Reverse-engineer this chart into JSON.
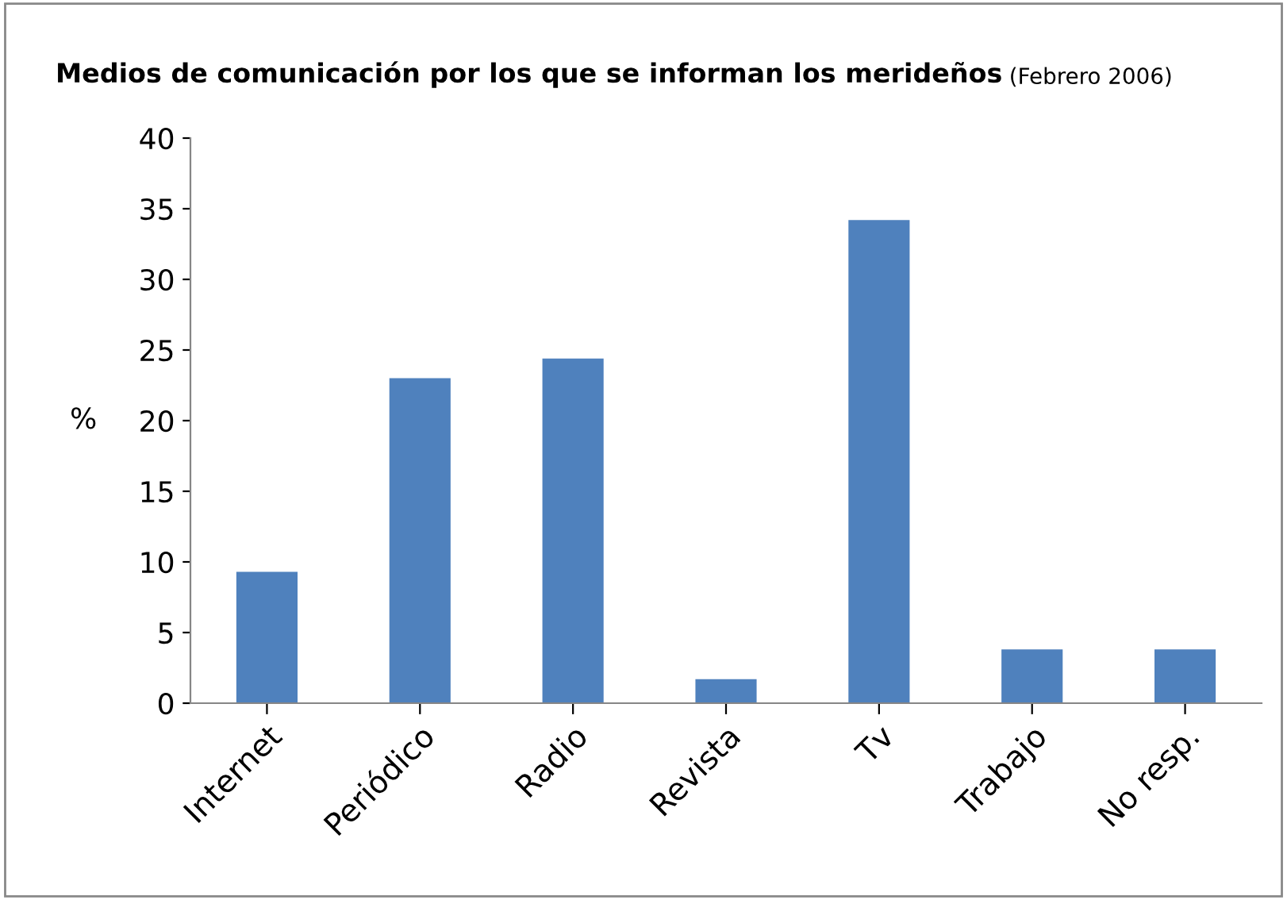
{
  "chart_data": {
    "type": "bar",
    "title": "Medios de comunicación por los que se informan los merideños",
    "subtitle": "(Febrero 2006)",
    "ylabel": "%",
    "categories": [
      "Internet",
      "Periódico",
      "Radio",
      "Revista",
      "Tv",
      "Trabajo",
      "No resp."
    ],
    "values": [
      9.3,
      23.0,
      24.4,
      1.7,
      34.2,
      3.8,
      3.8
    ],
    "color": "#4f81bd",
    "ylim": [
      0,
      40
    ],
    "yticks": [
      0,
      5,
      10,
      15,
      20,
      25,
      30,
      35,
      40
    ],
    "grid": false,
    "legend": false
  }
}
